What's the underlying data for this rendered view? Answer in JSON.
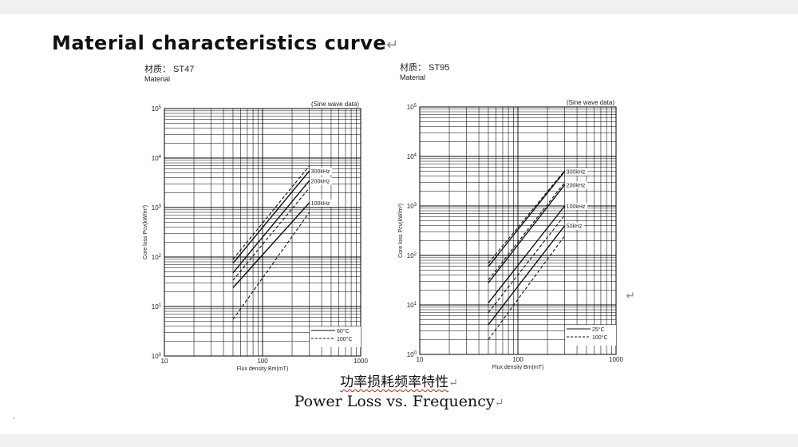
{
  "document": {
    "title": "Material characteristics curve",
    "paragraph_mark": "↵",
    "caption_cn": "功率损耗频率特性",
    "caption_en": "Power Loss vs. Frequency"
  },
  "chart_data": [
    {
      "type": "line",
      "material_cn": "材质： ST47",
      "material_en": "Material",
      "note": "(Sine wave data)",
      "xlabel": "Flux density Bm(mT)",
      "ylabel": "Core loss Pcv(kW/m³)",
      "xscale": "log",
      "yscale": "log",
      "xlim": [
        10,
        1000
      ],
      "ylim": [
        1,
        100000
      ],
      "xticks": [
        {
          "v": 10,
          "label": "10"
        },
        {
          "v": 100,
          "label": "100"
        },
        {
          "v": 1000,
          "label": "1000"
        }
      ],
      "yticks": [
        {
          "v": 1,
          "base": "10",
          "exp": "0"
        },
        {
          "v": 10,
          "base": "10",
          "exp": "1"
        },
        {
          "v": 100,
          "base": "10",
          "exp": "2"
        },
        {
          "v": 1000,
          "base": "10",
          "exp": "3"
        },
        {
          "v": 10000,
          "base": "10",
          "exp": "4"
        },
        {
          "v": 100000,
          "base": "10",
          "exp": "5"
        }
      ],
      "grid": true,
      "legend_position": "bottom-right",
      "legend": [
        {
          "label": "60°C",
          "style": "solid"
        },
        {
          "label": "100°C",
          "style": "dashed"
        }
      ],
      "series": [
        {
          "label": "300kHz",
          "style": "solid",
          "x": [
            50,
            300
          ],
          "y": [
            75,
            5500
          ]
        },
        {
          "label": "",
          "style": "dashed",
          "x": [
            50,
            300
          ],
          "y": [
            90,
            7000
          ]
        },
        {
          "label": "200kHz",
          "style": "solid",
          "x": [
            50,
            300
          ],
          "y": [
            48,
            3500
          ]
        },
        {
          "label": "",
          "style": "dashed",
          "x": [
            50,
            300
          ],
          "y": [
            34,
            2500
          ]
        },
        {
          "label": "100kHz",
          "style": "solid",
          "x": [
            50,
            300
          ],
          "y": [
            24,
            1250
          ]
        },
        {
          "label": "",
          "style": "dashed",
          "x": [
            50,
            300
          ],
          "y": [
            5.5,
            800
          ]
        }
      ]
    },
    {
      "type": "line",
      "material_cn": "材质： ST95",
      "material_en": "Material",
      "note": "(Sine wave data)",
      "xlabel": "Flux density Bm(mT)",
      "ylabel": "Core loss Pcv(kW/m³)",
      "xscale": "log",
      "yscale": "log",
      "xlim": [
        10,
        1000
      ],
      "ylim": [
        1,
        100000
      ],
      "xticks": [
        {
          "v": 10,
          "label": "10"
        },
        {
          "v": 100,
          "label": "100"
        },
        {
          "v": 1000,
          "label": "1000"
        }
      ],
      "yticks": [
        {
          "v": 1,
          "base": "10",
          "exp": "0"
        },
        {
          "v": 10,
          "base": "10",
          "exp": "1"
        },
        {
          "v": 100,
          "base": "10",
          "exp": "2"
        },
        {
          "v": 1000,
          "base": "10",
          "exp": "3"
        },
        {
          "v": 10000,
          "base": "10",
          "exp": "4"
        },
        {
          "v": 100000,
          "base": "10",
          "exp": "5"
        }
      ],
      "grid": true,
      "legend_position": "bottom-right",
      "legend": [
        {
          "label": "25°C",
          "style": "solid"
        },
        {
          "label": "100°C",
          "style": "dashed"
        }
      ],
      "series": [
        {
          "label": "300kHz",
          "style": "solid",
          "x": [
            50,
            300
          ],
          "y": [
            60,
            5000
          ]
        },
        {
          "label": "",
          "style": "dashed",
          "x": [
            50,
            300
          ],
          "y": [
            70,
            5200
          ]
        },
        {
          "label": "200kHz",
          "style": "solid",
          "x": [
            50,
            300
          ],
          "y": [
            28,
            2700
          ]
        },
        {
          "label": "",
          "style": "dashed",
          "x": [
            50,
            300
          ],
          "y": [
            32,
            3000
          ]
        },
        {
          "label": "100kHz",
          "style": "solid",
          "x": [
            50,
            300
          ],
          "y": [
            11,
            1000
          ]
        },
        {
          "label": "",
          "style": "dashed",
          "x": [
            50,
            300
          ],
          "y": [
            7,
            650
          ]
        },
        {
          "label": "50kHz",
          "style": "solid",
          "x": [
            50,
            300
          ],
          "y": [
            4,
            400
          ]
        },
        {
          "label": "",
          "style": "dashed",
          "x": [
            50,
            300
          ],
          "y": [
            2,
            250
          ]
        }
      ]
    }
  ]
}
